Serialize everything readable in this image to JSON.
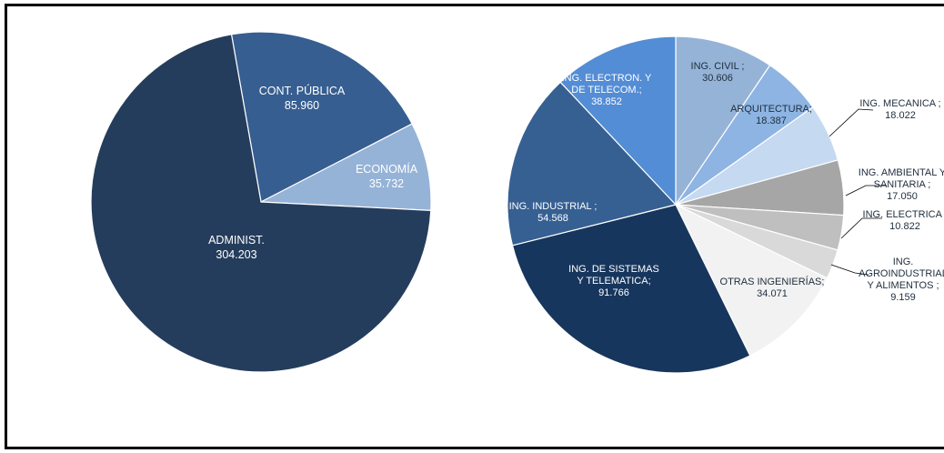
{
  "chart_data": [
    {
      "type": "pie",
      "slices": [
        {
          "label": "CONT. PÚBLICA",
          "value_text": "85.960",
          "value": 85.96,
          "color": "#365e91",
          "text_color": "#ffffff"
        },
        {
          "label": "ECONOMÍA",
          "value_text": "35.732",
          "value": 35.732,
          "color": "#95b3d7",
          "text_color": "#ffffff"
        },
        {
          "label": "ADMINIST.",
          "value_text": "304.203",
          "value": 304.203,
          "color": "#253d5c",
          "text_color": "#ffffff"
        }
      ]
    },
    {
      "type": "pie",
      "slices": [
        {
          "label": "ING. CIVIL ;",
          "value_text": "30.606",
          "value": 30.606,
          "color": "#95b3d7",
          "text_color": "#1f2d3d"
        },
        {
          "label": "ARQUITECTURA;",
          "value_text": "18.387",
          "value": 18.387,
          "color": "#8db4e2",
          "text_color": "#1f2d3d"
        },
        {
          "label": "ING. MECANICA ;",
          "value_text": "18.022",
          "value": 18.022,
          "color": "#c5d9f1",
          "text_color": "#1f2d3d"
        },
        {
          "label": "ING. AMBIENTAL Y SANITARIA ;",
          "value_text": "17.050",
          "value": 17.05,
          "color": "#a6a6a6",
          "text_color": "#1f2d3d"
        },
        {
          "label": "ING. ELECTRICA ;",
          "value_text": "10.822",
          "value": 10.822,
          "color": "#bfbfbf",
          "text_color": "#1f2d3d"
        },
        {
          "label": "ING. AGROINDUSTRIAL Y ALIMENTOS ;",
          "value_text": "9.159",
          "value": 9.159,
          "color": "#d9d9d9",
          "text_color": "#1f2d3d"
        },
        {
          "label": "OTRAS INGENIERÍAS;",
          "value_text": "34.071",
          "value": 34.071,
          "color": "#f2f2f2",
          "text_color": "#1f2d3d"
        },
        {
          "label": "ING. DE SISTEMAS Y TELEMATICA;",
          "value_text": "91.766",
          "value": 91.766,
          "color": "#17365d",
          "text_color": "#ffffff"
        },
        {
          "label": "ING. INDUSTRIAL ;",
          "value_text": "54.568",
          "value": 54.568,
          "color": "#366092",
          "text_color": "#ffffff"
        },
        {
          "label": "ING. ELECTRON. Y DE TELECOM.;",
          "value_text": "38.852",
          "value": 38.852,
          "color": "#538dd5",
          "text_color": "#ffffff"
        }
      ]
    }
  ]
}
